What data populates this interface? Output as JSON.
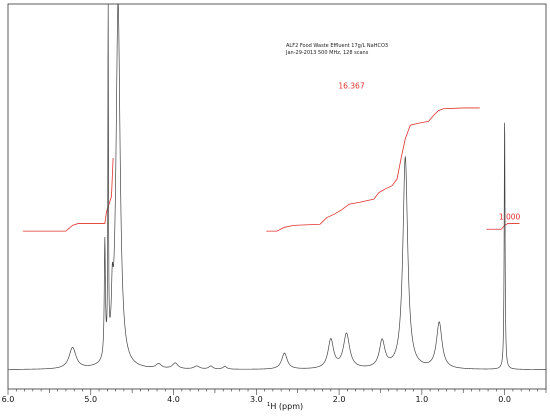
{
  "chart_data": {
    "type": "line",
    "title": "",
    "annotation_lines": [
      "ALF2 Food Waste Effluent 17g/L NaHCO3",
      "Jan-29-2013 500 MHz, 128 scans"
    ],
    "xlabel_sup": "1",
    "xlabel": "H (ppm)",
    "xlim": [
      6.0,
      -0.5
    ],
    "ylim": [
      0,
      100
    ],
    "x_axis_reversed": true,
    "x_ticks": [
      6.0,
      5.0,
      4.0,
      3.0,
      2.0,
      1.0,
      0.0
    ],
    "x_tick_labels": [
      "6.0",
      "5.0",
      "4.0",
      "3.0",
      "2.0",
      "1.0",
      "0.0"
    ],
    "grid": false,
    "spectrum_color": "#444444",
    "integral_color": "#e0322d",
    "baseline": 5,
    "peaks": [
      {
        "ppm": 5.22,
        "height": 5.5,
        "width": 0.05
      },
      {
        "ppm": 4.83,
        "height": 30,
        "width": 0.008
      },
      {
        "ppm": 4.79,
        "height": 95,
        "width": 0.004
      },
      {
        "ppm": 4.74,
        "height": 12,
        "width": 0.012
      },
      {
        "ppm": 4.67,
        "height": 95,
        "width": 0.03
      },
      {
        "ppm": 4.18,
        "height": 1.2,
        "width": 0.04
      },
      {
        "ppm": 3.98,
        "height": 1.5,
        "width": 0.04
      },
      {
        "ppm": 3.72,
        "height": 0.8,
        "width": 0.04
      },
      {
        "ppm": 3.55,
        "height": 0.8,
        "width": 0.03
      },
      {
        "ppm": 3.38,
        "height": 0.7,
        "width": 0.03
      },
      {
        "ppm": 2.66,
        "height": 4.2,
        "width": 0.04
      },
      {
        "ppm": 2.1,
        "height": 7.5,
        "width": 0.04
      },
      {
        "ppm": 1.91,
        "height": 9,
        "width": 0.045
      },
      {
        "ppm": 1.48,
        "height": 7,
        "width": 0.04
      },
      {
        "ppm": 1.2,
        "height": 55,
        "width": 0.035
      },
      {
        "ppm": 0.79,
        "height": 12,
        "width": 0.04
      },
      {
        "ppm": 0.0,
        "height": 66,
        "width": 0.006
      }
    ],
    "integrals": [
      {
        "label": "",
        "points": [
          [
            5.82,
            41
          ],
          [
            5.3,
            41
          ],
          [
            5.22,
            42.5
          ],
          [
            5.15,
            43
          ],
          [
            4.83,
            43
          ],
          [
            4.81,
            46
          ],
          [
            4.78,
            48
          ],
          [
            4.75,
            50
          ],
          [
            4.73,
            60
          ]
        ]
      },
      {
        "label": "16.367",
        "label_ppm": 1.85,
        "label_y": 78,
        "points": [
          [
            2.88,
            41
          ],
          [
            2.75,
            41
          ],
          [
            2.66,
            42
          ],
          [
            2.55,
            42.5
          ],
          [
            2.23,
            42.8
          ],
          [
            2.15,
            44.5
          ],
          [
            2.05,
            45.5
          ],
          [
            1.97,
            46.5
          ],
          [
            1.88,
            48
          ],
          [
            1.75,
            48.5
          ],
          [
            1.58,
            49.3
          ],
          [
            1.52,
            51
          ],
          [
            1.44,
            52
          ],
          [
            1.36,
            52.8
          ],
          [
            1.3,
            54.5
          ],
          [
            1.25,
            60
          ],
          [
            1.2,
            65
          ],
          [
            1.14,
            68.5
          ],
          [
            1.05,
            69
          ],
          [
            0.92,
            69.5
          ],
          [
            0.86,
            71
          ],
          [
            0.8,
            72.3
          ],
          [
            0.74,
            72.8
          ],
          [
            0.5,
            73
          ],
          [
            0.3,
            73
          ]
        ]
      },
      {
        "label": "1.000",
        "label_ppm": -0.06,
        "label_y": 44,
        "points": [
          [
            0.22,
            41.5
          ],
          [
            0.04,
            41.5
          ],
          [
            0.0,
            42.5
          ],
          [
            -0.04,
            43
          ],
          [
            -0.18,
            43
          ]
        ]
      }
    ]
  }
}
